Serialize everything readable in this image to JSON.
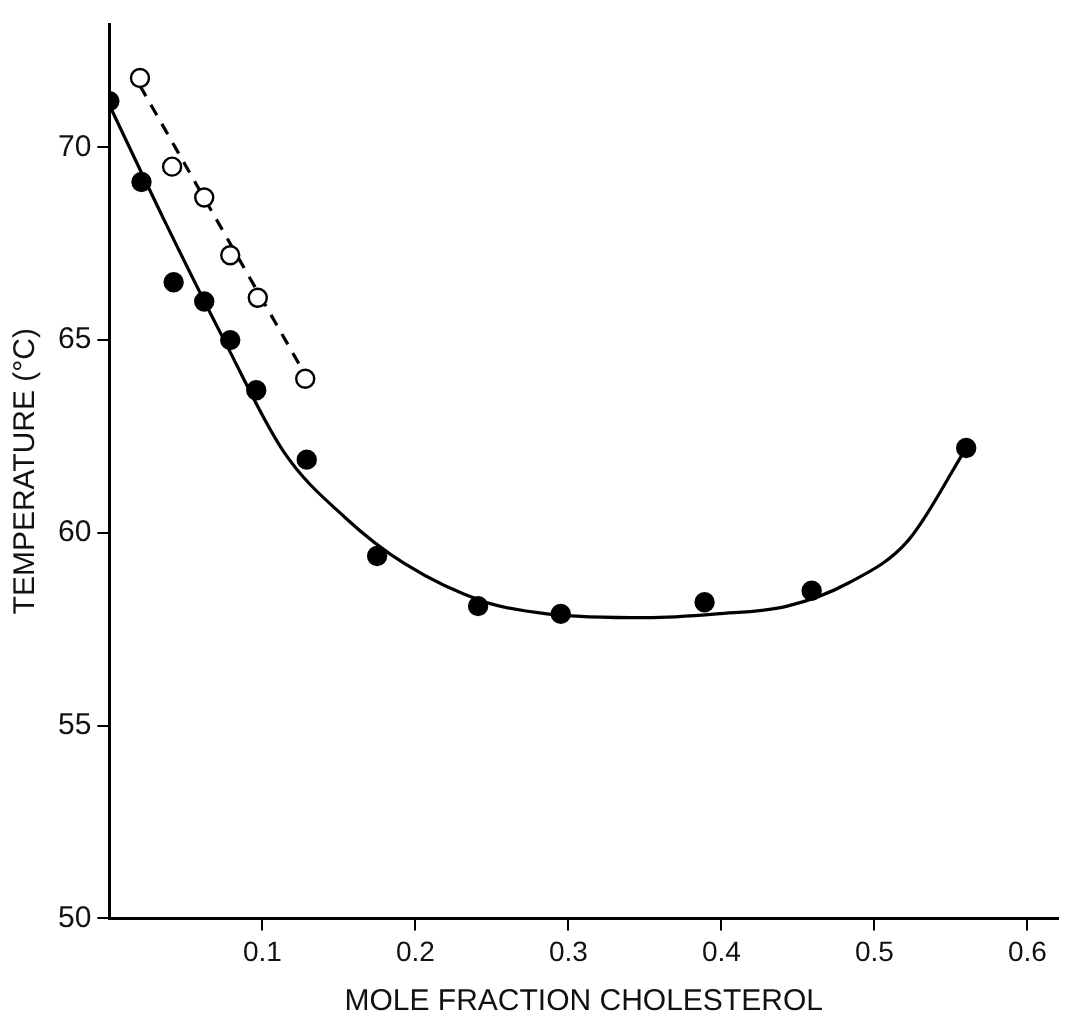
{
  "chart_data": {
    "type": "scatter",
    "xlabel": "MOLE FRACTION CHOLESTEROL",
    "ylabel": "TEMPERATURE (°C)",
    "xlim": [
      0,
      0.62
    ],
    "xticks": [
      0.1,
      0.2,
      0.3,
      0.4,
      0.5,
      0.6
    ],
    "ylim": [
      50,
      73.2
    ],
    "yticks": [
      50,
      55,
      60,
      65,
      70
    ],
    "grid": false,
    "legend": false,
    "series": [
      {
        "color": "#000000",
        "marker": "circle",
        "x": [
          0,
          0.021,
          0.042,
          0.062,
          0.079,
          0.096,
          0.129,
          0.175,
          0.241,
          0.295,
          0.389,
          0.459,
          0.56
        ],
        "values": [
          71.2,
          69.1,
          66.5,
          66.0,
          65.0,
          63.7,
          61.9,
          59.4,
          58.1,
          57.9,
          58.2,
          58.5,
          62.2
        ]
      },
      {
        "color": "#ffffff",
        "marker": "circle",
        "x": [
          0.02,
          0.041,
          0.062,
          0.079,
          0.097,
          0.128
        ],
        "values": [
          71.8,
          69.5,
          68.7,
          67.2,
          66.1,
          64.0
        ]
      },
      {
        "type": "line",
        "color": "#000000",
        "marker": "none",
        "line_style": "solid",
        "x": [
          0,
          0.036,
          0.075,
          0.114,
          0.154,
          0.193,
          0.246,
          0.286,
          0.351,
          0.397,
          0.443,
          0.483,
          0.522,
          0.56
        ],
        "values": [
          71.1,
          68.1,
          65.0,
          62.1,
          60.4,
          59.2,
          58.2,
          57.9,
          57.8,
          57.9,
          58.1,
          58.7,
          59.8,
          62.2
        ]
      },
      {
        "type": "line",
        "color": "#000000",
        "marker": "none",
        "line_style": "dashed",
        "x": [
          0.02,
          0.128
        ],
        "values": [
          71.6,
          64.1
        ]
      }
    ]
  }
}
